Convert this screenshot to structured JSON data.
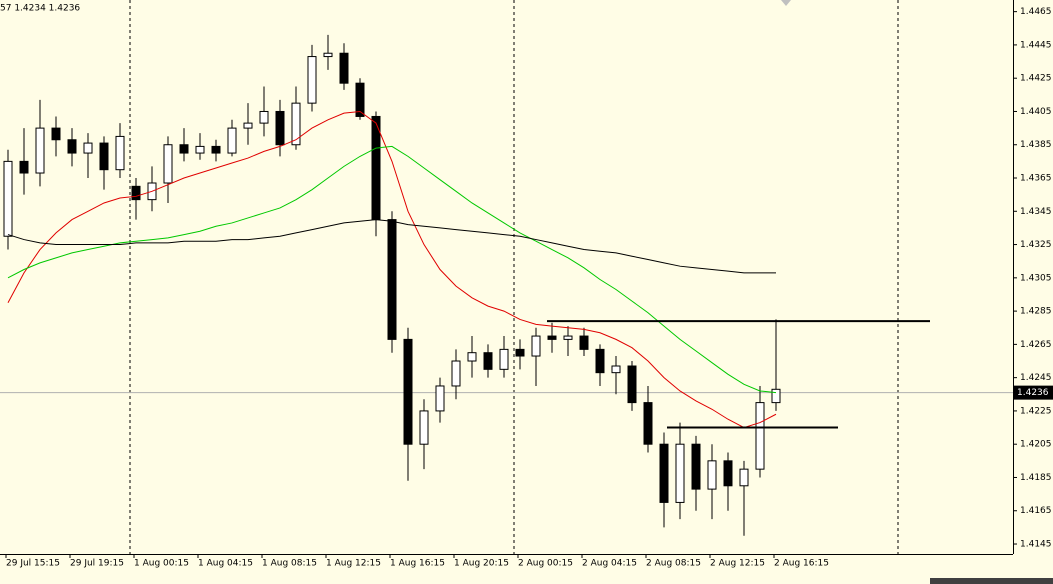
{
  "chart_data": {
    "type": "candlestick",
    "title": "57 1.4234 1.4236",
    "categories": [
      "29 Jul 15:15",
      null,
      null,
      null,
      "29 Jul 19:15",
      null,
      null,
      null,
      "1 Aug 00:15",
      null,
      null,
      null,
      "1 Aug 04:15",
      null,
      null,
      null,
      "1 Aug 08:15",
      null,
      null,
      null,
      "1 Aug 12:15",
      null,
      null,
      null,
      "1 Aug 16:15",
      null,
      null,
      null,
      "1 Aug 20:15",
      null,
      null,
      null,
      "2 Aug 00:15",
      null,
      null,
      null,
      "2 Aug 04:15",
      null,
      null,
      null,
      "2 Aug 08:15",
      null,
      null,
      null,
      "2 Aug 12:15",
      null,
      null,
      null,
      "2 Aug 16:15"
    ],
    "open": [
      1.433,
      1.4375,
      1.4368,
      1.4395,
      1.4388,
      1.438,
      1.4386,
      1.437,
      1.436,
      1.4352,
      1.4362,
      1.4385,
      1.438,
      1.4384,
      1.438,
      1.4395,
      1.4398,
      1.4405,
      1.4385,
      1.441,
      1.4438,
      1.444,
      1.4422,
      1.4402,
      1.434,
      1.4268,
      1.4205,
      1.4225,
      1.424,
      1.4255,
      1.426,
      1.425,
      1.4262,
      1.4258,
      1.427,
      1.4268,
      1.427,
      1.4262,
      1.4248,
      1.4252,
      1.423,
      1.4205,
      1.417,
      1.4205,
      1.4178,
      1.4195,
      1.418,
      1.419,
      1.423
    ],
    "high": [
      1.4382,
      1.4395,
      1.4412,
      1.4402,
      1.4395,
      1.4392,
      1.439,
      1.4398,
      1.4365,
      1.4372,
      1.439,
      1.4395,
      1.4392,
      1.4388,
      1.44,
      1.441,
      1.442,
      1.4412,
      1.442,
      1.4445,
      1.4451,
      1.4446,
      1.4425,
      1.4405,
      1.4345,
      1.4275,
      1.4232,
      1.4245,
      1.4262,
      1.427,
      1.4265,
      1.427,
      1.4268,
      1.4275,
      1.4278,
      1.4276,
      1.4275,
      1.4265,
      1.4258,
      1.4255,
      1.424,
      1.4212,
      1.4218,
      1.421,
      1.4205,
      1.42,
      1.4195,
      1.424,
      1.428
    ],
    "low": [
      1.4322,
      1.4355,
      1.436,
      1.4378,
      1.4372,
      1.4365,
      1.4358,
      1.4365,
      1.434,
      1.4345,
      1.435,
      1.4375,
      1.4376,
      1.4375,
      1.4378,
      1.4385,
      1.439,
      1.4378,
      1.4382,
      1.4405,
      1.443,
      1.4418,
      1.44,
      1.433,
      1.426,
      1.4183,
      1.419,
      1.4218,
      1.4232,
      1.4245,
      1.4245,
      1.4245,
      1.425,
      1.424,
      1.426,
      1.4258,
      1.4258,
      1.424,
      1.4235,
      1.4225,
      1.42,
      1.4155,
      1.416,
      1.4165,
      1.416,
      1.4165,
      1.415,
      1.4185,
      1.4225
    ],
    "close": [
      1.4375,
      1.4368,
      1.4395,
      1.4388,
      1.438,
      1.4386,
      1.437,
      1.439,
      1.4352,
      1.4362,
      1.4385,
      1.438,
      1.4384,
      1.438,
      1.4395,
      1.4398,
      1.4405,
      1.4385,
      1.441,
      1.4438,
      1.444,
      1.4422,
      1.4402,
      1.434,
      1.4268,
      1.4205,
      1.4225,
      1.424,
      1.4255,
      1.426,
      1.425,
      1.4262,
      1.4258,
      1.427,
      1.4268,
      1.427,
      1.4262,
      1.4248,
      1.4252,
      1.423,
      1.4205,
      1.417,
      1.4205,
      1.4178,
      1.4195,
      1.418,
      1.419,
      1.423,
      1.4238
    ],
    "up_color": "#ffffff",
    "down_color": "#000000",
    "wick_color": "#000000",
    "moving_averages": [
      {
        "color": "#e00000",
        "values": [
          1.429,
          1.4308,
          1.4322,
          1.4332,
          1.434,
          1.4345,
          1.435,
          1.4353,
          1.4354,
          1.4357,
          1.4361,
          1.4365,
          1.4368,
          1.4371,
          1.4374,
          1.4377,
          1.4381,
          1.4384,
          1.4388,
          1.4395,
          1.44,
          1.4404,
          1.4405,
          1.4398,
          1.4375,
          1.4345,
          1.4325,
          1.431,
          1.43,
          1.4293,
          1.4288,
          1.4285,
          1.428,
          1.4277,
          1.4276,
          1.4275,
          1.4274,
          1.4272,
          1.4268,
          1.4263,
          1.4255,
          1.4245,
          1.4237,
          1.4231,
          1.4226,
          1.422,
          1.4215,
          1.4218,
          1.4223
        ]
      },
      {
        "color": "#00c800",
        "values": [
          1.4305,
          1.431,
          1.4314,
          1.4317,
          1.432,
          1.4322,
          1.4324,
          1.4326,
          1.4327,
          1.4328,
          1.4329,
          1.4331,
          1.4333,
          1.4336,
          1.4338,
          1.4341,
          1.4344,
          1.4347,
          1.4352,
          1.4358,
          1.4365,
          1.4372,
          1.4378,
          1.4383,
          1.4384,
          1.4378,
          1.4371,
          1.4364,
          1.4357,
          1.435,
          1.4344,
          1.4338,
          1.4332,
          1.4327,
          1.4322,
          1.4317,
          1.4311,
          1.4304,
          1.4298,
          1.4291,
          1.4284,
          1.4276,
          1.4268,
          1.4261,
          1.4254,
          1.4247,
          1.4241,
          1.4237,
          1.4236
        ]
      },
      {
        "color": "#000000",
        "values": [
          1.4331,
          1.4328,
          1.4326,
          1.4325,
          1.4325,
          1.4325,
          1.4325,
          1.4325,
          1.4326,
          1.4326,
          1.4326,
          1.4327,
          1.4327,
          1.4327,
          1.4328,
          1.4328,
          1.4329,
          1.433,
          1.4332,
          1.4334,
          1.4336,
          1.4338,
          1.4339,
          1.434,
          1.4339,
          1.4337,
          1.4336,
          1.4335,
          1.4334,
          1.4333,
          1.4332,
          1.4331,
          1.433,
          1.4328,
          1.4326,
          1.4324,
          1.4322,
          1.4321,
          1.432,
          1.4318,
          1.4316,
          1.4314,
          1.4312,
          1.4311,
          1.431,
          1.4309,
          1.4308,
          1.4308,
          1.4308
        ]
      }
    ],
    "hlines": [
      1.4279,
      1.4215
    ],
    "current_price": 1.4236,
    "ylim": [
      1.4139,
      1.4472
    ],
    "yticks": [
      1.4145,
      1.4165,
      1.4185,
      1.4205,
      1.4225,
      1.4245,
      1.4265,
      1.4285,
      1.4305,
      1.4325,
      1.4345,
      1.4365,
      1.4385,
      1.4405,
      1.4425,
      1.4445,
      1.4465
    ]
  }
}
